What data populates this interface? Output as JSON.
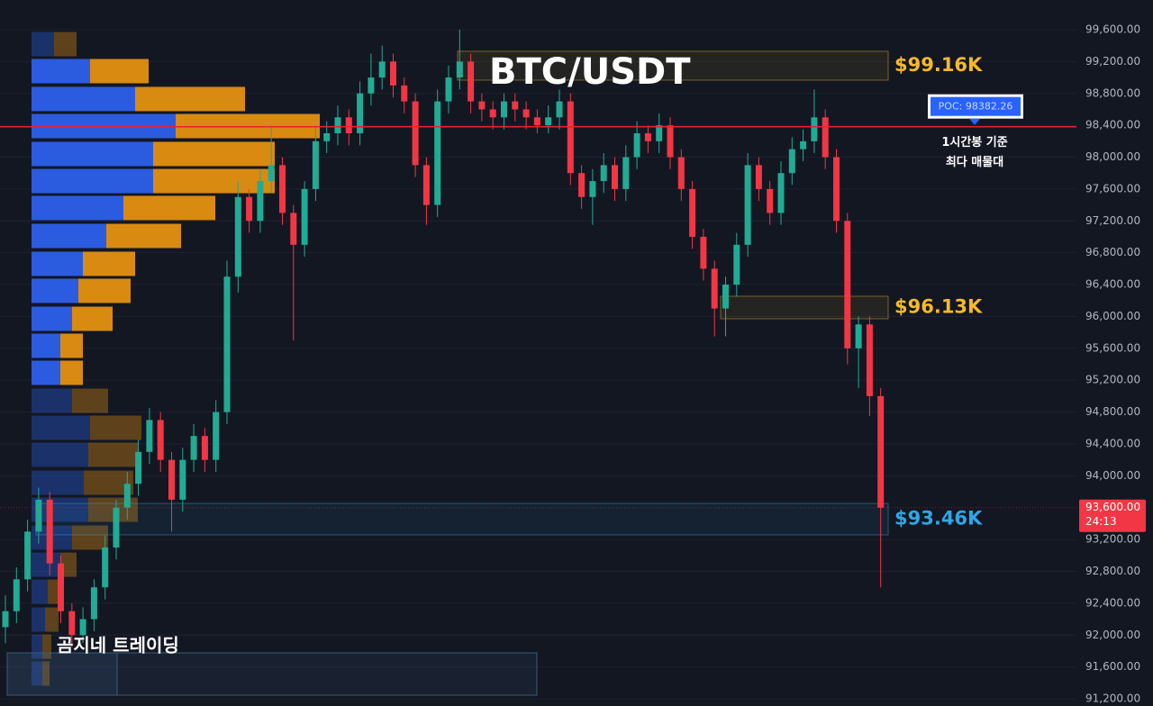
{
  "chart_data": {
    "type": "candlestick",
    "title": "BTC/USDT",
    "watermark": "곰지네 트레이딩",
    "up_color": "#22ab94",
    "down_color": "#f23645",
    "ylim": [
      91110,
      99973
    ],
    "yticks": [
      {
        "value": 91200,
        "label": "91,200.00"
      },
      {
        "value": 91600,
        "label": "91,600.00"
      },
      {
        "value": 92000,
        "label": "92,000.00"
      },
      {
        "value": 92400,
        "label": "92,400.00"
      },
      {
        "value": 92800,
        "label": "92,800.00"
      },
      {
        "value": 93200,
        "label": "93,200.00"
      },
      {
        "value": 94000,
        "label": "94,000.00"
      },
      {
        "value": 94400,
        "label": "94,400.00"
      },
      {
        "value": 94800,
        "label": "94,800.00"
      },
      {
        "value": 95200,
        "label": "95,200.00"
      },
      {
        "value": 95600,
        "label": "95,600.00"
      },
      {
        "value": 96000,
        "label": "96,000.00"
      },
      {
        "value": 96400,
        "label": "96,400.00"
      },
      {
        "value": 96800,
        "label": "96,800.00"
      },
      {
        "value": 97200,
        "label": "97,200.00"
      },
      {
        "value": 97600,
        "label": "97,600.00"
      },
      {
        "value": 98000,
        "label": "98,000.00"
      },
      {
        "value": 98400,
        "label": "98,400.00"
      },
      {
        "value": 98800,
        "label": "98,800.00"
      },
      {
        "value": 99200,
        "label": "99,200.00"
      },
      {
        "value": 99600,
        "label": "99,600.00"
      }
    ],
    "grid": true,
    "series": [
      {
        "name": "BTC/USDT",
        "open": [
          92100,
          92300,
          92700,
          93300,
          93700,
          92900,
          92300,
          92000,
          92200,
          92600,
          93100,
          93600,
          93900,
          94300,
          94700,
          94200,
          93700,
          94200,
          94500,
          94200,
          94800,
          96500,
          97500,
          97200,
          97700,
          97900,
          97300,
          96900,
          97600,
          98200,
          98300,
          98500,
          98300,
          98800,
          99000,
          99200,
          98900,
          98700,
          97900,
          97400,
          98700,
          99000,
          99200,
          98700,
          98600,
          98500,
          98700,
          98600,
          98500,
          98400,
          98500,
          98700,
          97800,
          97500,
          97700,
          97900,
          97600,
          98000,
          98300,
          98200,
          98400,
          98000,
          97600,
          97000,
          96600,
          96100,
          96400,
          96900,
          97900,
          97600,
          97300,
          97800,
          98100,
          98200,
          98500,
          98000,
          97200,
          95600,
          95900,
          95000
        ],
        "high": [
          92500,
          92850,
          93450,
          93850,
          93800,
          93000,
          92400,
          92350,
          92700,
          93250,
          93700,
          94050,
          94450,
          94850,
          94800,
          94300,
          94350,
          94650,
          94600,
          94950,
          96700,
          97700,
          97600,
          97850,
          98400,
          98000,
          97400,
          97700,
          98400,
          98450,
          98650,
          98600,
          98950,
          99300,
          99400,
          99300,
          99000,
          98800,
          98000,
          98850,
          99150,
          99600,
          99300,
          98800,
          98700,
          98800,
          98800,
          98700,
          98600,
          98650,
          98850,
          98800,
          97900,
          97850,
          98050,
          98000,
          98150,
          98450,
          98400,
          98550,
          98500,
          98100,
          97700,
          97100,
          96700,
          96500,
          97050,
          98050,
          98000,
          97700,
          97950,
          98250,
          98350,
          98850,
          98600,
          98100,
          97300,
          96000,
          96000,
          95100
        ],
        "low": [
          91900,
          92150,
          92550,
          93150,
          92750,
          92150,
          91850,
          91900,
          92050,
          92450,
          92950,
          93450,
          93750,
          94150,
          94050,
          93300,
          93550,
          94050,
          94050,
          94050,
          94650,
          96300,
          97050,
          97050,
          97550,
          97150,
          95700,
          96750,
          97450,
          98050,
          98150,
          98150,
          98150,
          98650,
          98850,
          98750,
          98550,
          97750,
          97150,
          97250,
          98550,
          98850,
          98550,
          98450,
          98350,
          98350,
          98450,
          98350,
          98300,
          98300,
          98350,
          97650,
          97350,
          97150,
          97550,
          97450,
          97450,
          97850,
          98050,
          98050,
          97850,
          97450,
          96850,
          96450,
          95750,
          95750,
          96250,
          96750,
          97450,
          97150,
          97150,
          97650,
          97950,
          98050,
          97850,
          97050,
          95400,
          95100,
          94750,
          92600
        ],
        "close": [
          92300,
          92700,
          93300,
          93700,
          92900,
          92300,
          92000,
          92200,
          92600,
          93100,
          93600,
          93900,
          94300,
          94700,
          94200,
          93700,
          94200,
          94500,
          94200,
          94800,
          96500,
          97500,
          97200,
          97700,
          97900,
          97300,
          96900,
          97600,
          98200,
          98300,
          98500,
          98300,
          98800,
          99000,
          99200,
          98900,
          98700,
          97900,
          97400,
          98700,
          99000,
          99200,
          98700,
          98600,
          98500,
          98700,
          98600,
          98500,
          98400,
          98500,
          98700,
          97800,
          97500,
          97700,
          97900,
          97600,
          98000,
          98300,
          98200,
          98400,
          98000,
          97600,
          97000,
          96600,
          96100,
          96400,
          96900,
          97900,
          97600,
          97300,
          97800,
          98100,
          98200,
          98500,
          98000,
          97200,
          95600,
          95900,
          95000,
          93600
        ]
      }
    ],
    "volume_profile": {
      "prices": [
        99419,
        99080,
        98730,
        98390,
        98040,
        97700,
        97362,
        97011,
        96661,
        96322,
        95971,
        95632,
        95293,
        94942,
        94603,
        94264,
        93913,
        93574,
        93224,
        92884,
        92545,
        92195,
        91856,
        91517
      ],
      "buy": [
        25,
        65,
        115,
        160,
        135,
        135,
        102,
        83,
        57,
        52,
        45,
        32,
        32,
        45,
        65,
        63,
        58,
        63,
        45,
        32,
        18,
        15,
        12,
        12
      ],
      "sell": [
        25,
        65,
        122,
        160,
        135,
        135,
        102,
        83,
        58,
        58,
        45,
        25,
        25,
        40,
        57,
        55,
        55,
        55,
        40,
        18,
        18,
        15,
        10,
        8
      ],
      "buy_color": "#2b5ce0",
      "sell_color": "#d98a10",
      "value_area": [
        95120,
        99250
      ]
    },
    "zones": [
      {
        "top": 99329,
        "bottom": 98967,
        "label": "$99.16K",
        "color": "#f7b928"
      },
      {
        "top": 96254,
        "bottom": 95971,
        "label": "$96.13K",
        "color": "#f7b928"
      },
      {
        "top": 93653,
        "bottom": 93258,
        "label": "$93.46K",
        "color": "#2ea7e6"
      }
    ],
    "poc": {
      "value": 98382.26,
      "label": "POC: 98382.26",
      "note": [
        "1시간봉 기준",
        "최다 매물대"
      ]
    },
    "last_price": {
      "value": 93600,
      "label": "93,600.00",
      "countdown": "24:13"
    }
  }
}
